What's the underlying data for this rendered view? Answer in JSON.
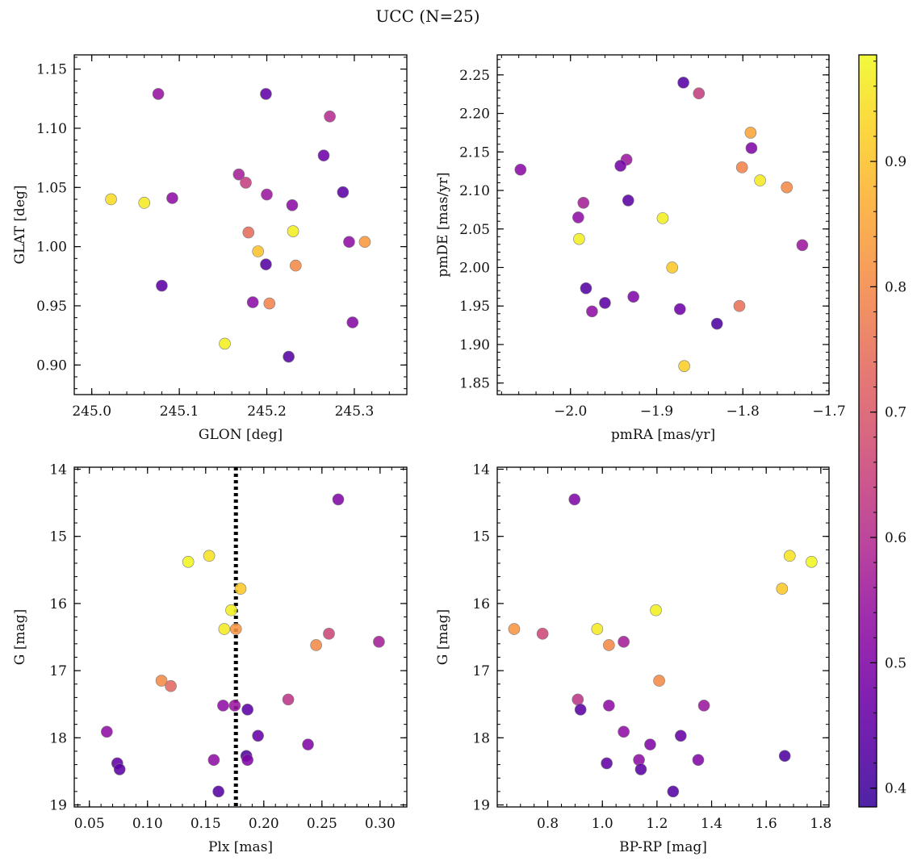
{
  "title": "UCC (N=25)",
  "colorbar": {
    "colormap": "plasma",
    "range": [
      0.385,
      0.985
    ],
    "ticks": [
      0.4,
      0.5,
      0.6,
      0.7,
      0.8,
      0.9
    ],
    "tick_labels": [
      "0.4",
      "0.5",
      "0.6",
      "0.7",
      "0.8",
      "0.9"
    ]
  },
  "chart_data": [
    {
      "type": "scatter",
      "xlabel": "GLON [deg]",
      "ylabel": "GLAT [deg]",
      "xlim": [
        244.98,
        245.36
      ],
      "ylim": [
        0.875,
        1.162
      ],
      "x_ticks": [
        245.0,
        245.1,
        245.2,
        245.3
      ],
      "x_tick_labels": [
        "245.0",
        "245.1",
        "245.2",
        "245.3"
      ],
      "y_ticks": [
        0.9,
        0.95,
        1.0,
        1.05,
        1.1,
        1.15
      ],
      "y_tick_labels": [
        "0.90",
        "0.95",
        "1.00",
        "1.05",
        "1.10",
        "1.15"
      ],
      "points": [
        {
          "x": 245.076,
          "y": 1.129,
          "c": 0.54
        },
        {
          "x": 245.199,
          "y": 1.129,
          "c": 0.45
        },
        {
          "x": 245.272,
          "y": 1.11,
          "c": 0.6
        },
        {
          "x": 245.265,
          "y": 1.077,
          "c": 0.47
        },
        {
          "x": 245.168,
          "y": 1.061,
          "c": 0.57
        },
        {
          "x": 245.176,
          "y": 1.054,
          "c": 0.64
        },
        {
          "x": 245.287,
          "y": 1.046,
          "c": 0.44
        },
        {
          "x": 245.2,
          "y": 1.044,
          "c": 0.55
        },
        {
          "x": 245.092,
          "y": 1.041,
          "c": 0.53
        },
        {
          "x": 245.022,
          "y": 1.04,
          "c": 0.94
        },
        {
          "x": 245.06,
          "y": 1.037,
          "c": 0.96
        },
        {
          "x": 245.229,
          "y": 1.035,
          "c": 0.52
        },
        {
          "x": 245.23,
          "y": 1.013,
          "c": 0.97
        },
        {
          "x": 245.179,
          "y": 1.012,
          "c": 0.74
        },
        {
          "x": 245.312,
          "y": 1.004,
          "c": 0.83
        },
        {
          "x": 245.294,
          "y": 1.004,
          "c": 0.53
        },
        {
          "x": 245.19,
          "y": 0.996,
          "c": 0.9
        },
        {
          "x": 245.199,
          "y": 0.985,
          "c": 0.43
        },
        {
          "x": 245.233,
          "y": 0.984,
          "c": 0.8
        },
        {
          "x": 245.08,
          "y": 0.967,
          "c": 0.44
        },
        {
          "x": 245.184,
          "y": 0.953,
          "c": 0.52
        },
        {
          "x": 245.203,
          "y": 0.952,
          "c": 0.79
        },
        {
          "x": 245.298,
          "y": 0.936,
          "c": 0.51
        },
        {
          "x": 245.152,
          "y": 0.918,
          "c": 0.97
        },
        {
          "x": 245.225,
          "y": 0.907,
          "c": 0.43
        }
      ]
    },
    {
      "type": "scatter",
      "xlabel": "pmRA [mas/yr]",
      "ylabel": "pmDE [mas/yr]",
      "xlim": [
        -2.085,
        -1.7
      ],
      "ylim": [
        1.835,
        2.276
      ],
      "x_ticks": [
        -2.0,
        -1.9,
        -1.8,
        -1.7
      ],
      "x_tick_labels": [
        "−2.0",
        "−1.9",
        "−1.8",
        "−1.7"
      ],
      "y_ticks": [
        1.85,
        1.9,
        1.95,
        2.0,
        2.05,
        2.1,
        2.15,
        2.2,
        2.25
      ],
      "y_tick_labels": [
        "1.85",
        "1.90",
        "1.95",
        "2.00",
        "2.05",
        "2.10",
        "2.15",
        "2.20",
        "2.25"
      ],
      "points": [
        {
          "x": -1.869,
          "y": 2.24,
          "c": 0.43
        },
        {
          "x": -1.851,
          "y": 2.226,
          "c": 0.64
        },
        {
          "x": -1.791,
          "y": 2.175,
          "c": 0.85
        },
        {
          "x": -1.79,
          "y": 2.155,
          "c": 0.5
        },
        {
          "x": -1.935,
          "y": 2.14,
          "c": 0.55
        },
        {
          "x": -1.942,
          "y": 2.132,
          "c": 0.48
        },
        {
          "x": -1.801,
          "y": 2.13,
          "c": 0.79
        },
        {
          "x": -2.058,
          "y": 2.127,
          "c": 0.52
        },
        {
          "x": -1.78,
          "y": 2.113,
          "c": 0.96
        },
        {
          "x": -1.749,
          "y": 2.104,
          "c": 0.8
        },
        {
          "x": -1.933,
          "y": 2.087,
          "c": 0.44
        },
        {
          "x": -1.985,
          "y": 2.084,
          "c": 0.57
        },
        {
          "x": -1.991,
          "y": 2.065,
          "c": 0.53
        },
        {
          "x": -1.893,
          "y": 2.064,
          "c": 0.97
        },
        {
          "x": -1.99,
          "y": 2.037,
          "c": 0.97
        },
        {
          "x": -1.731,
          "y": 2.029,
          "c": 0.55
        },
        {
          "x": -1.882,
          "y": 2.0,
          "c": 0.91
        },
        {
          "x": -1.982,
          "y": 1.973,
          "c": 0.43
        },
        {
          "x": -1.927,
          "y": 1.962,
          "c": 0.5
        },
        {
          "x": -1.96,
          "y": 1.954,
          "c": 0.44
        },
        {
          "x": -1.804,
          "y": 1.95,
          "c": 0.75
        },
        {
          "x": -1.873,
          "y": 1.946,
          "c": 0.47
        },
        {
          "x": -1.975,
          "y": 1.943,
          "c": 0.53
        },
        {
          "x": -1.83,
          "y": 1.927,
          "c": 0.42
        },
        {
          "x": -1.868,
          "y": 1.872,
          "c": 0.92
        }
      ]
    },
    {
      "type": "scatter",
      "xlabel": "Plx [mas]",
      "ylabel": "G [mag]",
      "xlim": [
        0.037,
        0.323
      ],
      "ylim": [
        19.03,
        13.97
      ],
      "y_inverted": true,
      "vline": {
        "x": 0.176,
        "style": "dotted",
        "color": "#000000"
      },
      "x_ticks": [
        0.05,
        0.1,
        0.15,
        0.2,
        0.25,
        0.3
      ],
      "x_tick_labels": [
        "0.05",
        "0.10",
        "0.15",
        "0.20",
        "0.25",
        "0.30"
      ],
      "y_ticks": [
        14,
        15,
        16,
        17,
        18,
        19
      ],
      "y_tick_labels": [
        "14",
        "15",
        "16",
        "17",
        "18",
        "19"
      ],
      "points": [
        {
          "x": 0.264,
          "y": 14.45,
          "c": 0.5
        },
        {
          "x": 0.153,
          "y": 15.29,
          "c": 0.95
        },
        {
          "x": 0.135,
          "y": 15.38,
          "c": 0.98
        },
        {
          "x": 0.18,
          "y": 15.78,
          "c": 0.91
        },
        {
          "x": 0.172,
          "y": 16.1,
          "c": 0.97
        },
        {
          "x": 0.166,
          "y": 16.38,
          "c": 0.96
        },
        {
          "x": 0.176,
          "y": 16.38,
          "c": 0.82
        },
        {
          "x": 0.256,
          "y": 16.45,
          "c": 0.66
        },
        {
          "x": 0.299,
          "y": 16.57,
          "c": 0.57
        },
        {
          "x": 0.245,
          "y": 16.62,
          "c": 0.8
        },
        {
          "x": 0.112,
          "y": 17.15,
          "c": 0.8
        },
        {
          "x": 0.12,
          "y": 17.23,
          "c": 0.73
        },
        {
          "x": 0.221,
          "y": 17.43,
          "c": 0.62
        },
        {
          "x": 0.165,
          "y": 17.52,
          "c": 0.53
        },
        {
          "x": 0.175,
          "y": 17.52,
          "c": 0.55
        },
        {
          "x": 0.186,
          "y": 17.58,
          "c": 0.44
        },
        {
          "x": 0.065,
          "y": 17.91,
          "c": 0.53
        },
        {
          "x": 0.195,
          "y": 17.97,
          "c": 0.46
        },
        {
          "x": 0.238,
          "y": 18.1,
          "c": 0.5
        },
        {
          "x": 0.185,
          "y": 18.27,
          "c": 0.42
        },
        {
          "x": 0.157,
          "y": 18.33,
          "c": 0.53
        },
        {
          "x": 0.186,
          "y": 18.33,
          "c": 0.5
        },
        {
          "x": 0.074,
          "y": 18.38,
          "c": 0.45
        },
        {
          "x": 0.076,
          "y": 18.47,
          "c": 0.44
        },
        {
          "x": 0.161,
          "y": 18.8,
          "c": 0.43
        }
      ]
    },
    {
      "type": "scatter",
      "xlabel": "BP-RP [mag]",
      "ylabel": "G [mag]",
      "xlim": [
        0.615,
        1.83
      ],
      "ylim": [
        19.03,
        13.97
      ],
      "y_inverted": true,
      "x_ticks": [
        0.8,
        1.0,
        1.2,
        1.4,
        1.6,
        1.8
      ],
      "x_tick_labels": [
        "0.8",
        "1.0",
        "1.2",
        "1.4",
        "1.6",
        "1.8"
      ],
      "y_ticks": [
        14,
        15,
        16,
        17,
        18,
        19
      ],
      "y_tick_labels": [
        "14",
        "15",
        "16",
        "17",
        "18",
        "19"
      ],
      "points": [
        {
          "x": 0.898,
          "y": 14.45,
          "c": 0.5
        },
        {
          "x": 1.686,
          "y": 15.29,
          "c": 0.95
        },
        {
          "x": 1.766,
          "y": 15.38,
          "c": 0.98
        },
        {
          "x": 1.658,
          "y": 15.78,
          "c": 0.91
        },
        {
          "x": 1.196,
          "y": 16.1,
          "c": 0.97
        },
        {
          "x": 0.677,
          "y": 16.38,
          "c": 0.82
        },
        {
          "x": 0.981,
          "y": 16.38,
          "c": 0.96
        },
        {
          "x": 0.781,
          "y": 16.45,
          "c": 0.66
        },
        {
          "x": 1.078,
          "y": 16.57,
          "c": 0.57
        },
        {
          "x": 1.024,
          "y": 16.62,
          "c": 0.8
        },
        {
          "x": 1.208,
          "y": 17.15,
          "c": 0.8
        },
        {
          "x": 0.91,
          "y": 17.43,
          "c": 0.62
        },
        {
          "x": 1.024,
          "y": 17.52,
          "c": 0.53
        },
        {
          "x": 1.372,
          "y": 17.52,
          "c": 0.55
        },
        {
          "x": 0.92,
          "y": 17.58,
          "c": 0.44
        },
        {
          "x": 1.078,
          "y": 17.91,
          "c": 0.53
        },
        {
          "x": 1.287,
          "y": 17.97,
          "c": 0.46
        },
        {
          "x": 1.175,
          "y": 18.1,
          "c": 0.5
        },
        {
          "x": 1.668,
          "y": 18.27,
          "c": 0.42
        },
        {
          "x": 1.134,
          "y": 18.33,
          "c": 0.53
        },
        {
          "x": 1.351,
          "y": 18.33,
          "c": 0.5
        },
        {
          "x": 1.016,
          "y": 18.38,
          "c": 0.45
        },
        {
          "x": 1.141,
          "y": 18.47,
          "c": 0.44
        },
        {
          "x": 1.259,
          "y": 18.8,
          "c": 0.43
        }
      ]
    }
  ]
}
